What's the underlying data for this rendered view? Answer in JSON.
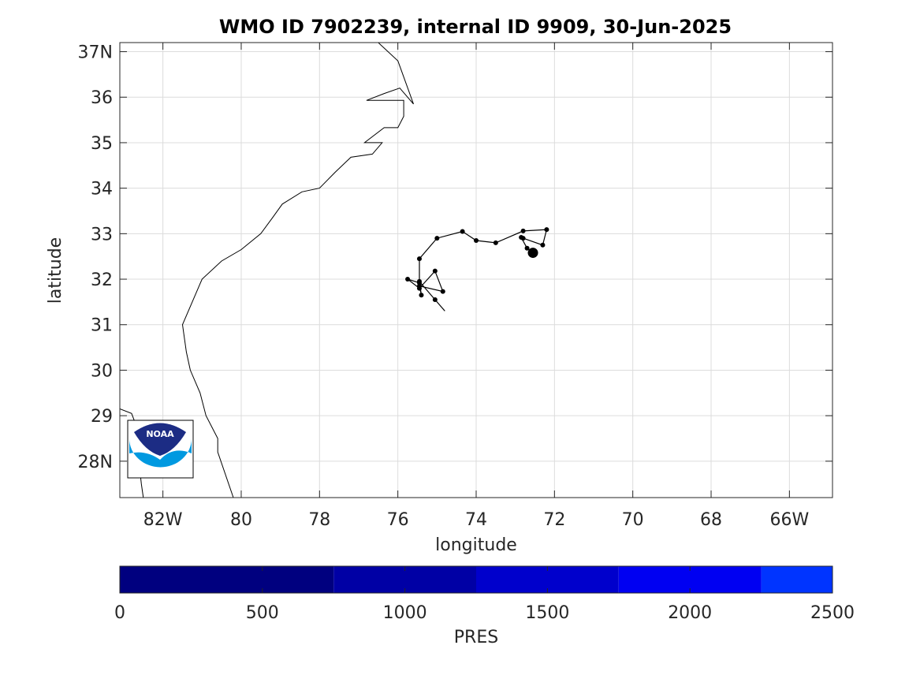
{
  "chart_data": {
    "type": "map",
    "title": "WMO ID 7902239, internal ID 9909, 30-Jun-2025",
    "xlabel": "longitude",
    "ylabel": "latitude",
    "xlim": [
      -83.1,
      -64.9
    ],
    "ylim": [
      27.2,
      37.2
    ],
    "x_ticks": [
      {
        "value": -82,
        "label": "82W"
      },
      {
        "value": -80,
        "label": "80"
      },
      {
        "value": -78,
        "label": "78"
      },
      {
        "value": -76,
        "label": "76"
      },
      {
        "value": -74,
        "label": "74"
      },
      {
        "value": -72,
        "label": "72"
      },
      {
        "value": -70,
        "label": "70"
      },
      {
        "value": -68,
        "label": "68"
      },
      {
        "value": -66,
        "label": "66W"
      }
    ],
    "y_ticks": [
      {
        "value": 28,
        "label": "28N"
      },
      {
        "value": 29,
        "label": "29"
      },
      {
        "value": 30,
        "label": "30"
      },
      {
        "value": 31,
        "label": "31"
      },
      {
        "value": 32,
        "label": "32"
      },
      {
        "value": 33,
        "label": "33"
      },
      {
        "value": 34,
        "label": "34"
      },
      {
        "value": 35,
        "label": "35"
      },
      {
        "value": 36,
        "label": "36"
      },
      {
        "value": 37,
        "label": "37N"
      }
    ],
    "grid": true,
    "coastline": [
      [
        -76.5,
        37.2
      ],
      [
        -76.0,
        36.8
      ],
      [
        -75.6,
        35.85
      ],
      [
        -75.95,
        36.2
      ],
      [
        -76.35,
        36.08
      ],
      [
        -76.8,
        35.93
      ],
      [
        -75.85,
        35.93
      ],
      [
        -75.85,
        35.58
      ],
      [
        -76.0,
        35.33
      ],
      [
        -76.35,
        35.33
      ],
      [
        -76.85,
        35.0
      ],
      [
        -76.4,
        35.0
      ],
      [
        -76.65,
        34.75
      ],
      [
        -77.2,
        34.68
      ],
      [
        -77.6,
        34.35
      ],
      [
        -78.0,
        34.0
      ],
      [
        -78.45,
        33.92
      ],
      [
        -78.95,
        33.65
      ],
      [
        -79.2,
        33.35
      ],
      [
        -79.5,
        33.0
      ],
      [
        -80.0,
        32.65
      ],
      [
        -80.5,
        32.4
      ],
      [
        -81.0,
        32.0
      ],
      [
        -81.5,
        31.0
      ],
      [
        -81.4,
        30.4
      ],
      [
        -81.3,
        30.0
      ],
      [
        -81.05,
        29.5
      ],
      [
        -80.9,
        29.0
      ],
      [
        -80.6,
        28.5
      ],
      [
        -80.6,
        28.2
      ],
      [
        -80.2,
        27.2
      ]
    ],
    "coastline_sw": [
      [
        -83.1,
        29.15
      ],
      [
        -82.8,
        29.05
      ],
      [
        -82.6,
        28.6
      ],
      [
        -82.6,
        27.9
      ],
      [
        -82.55,
        27.5
      ],
      [
        -82.5,
        27.2
      ]
    ],
    "track": [
      {
        "lon": -74.8,
        "lat": 31.3,
        "dot": false
      },
      {
        "lon": -75.05,
        "lat": 31.55,
        "dot": true
      },
      {
        "lon": -75.45,
        "lat": 31.95,
        "dot": true
      },
      {
        "lon": -75.4,
        "lat": 31.65,
        "dot": true
      },
      {
        "lon": -75.45,
        "lat": 31.85,
        "dot": true
      },
      {
        "lon": -74.85,
        "lat": 31.73,
        "dot": true
      },
      {
        "lon": -75.05,
        "lat": 32.18,
        "dot": true
      },
      {
        "lon": -75.45,
        "lat": 31.8,
        "dot": true
      },
      {
        "lon": -75.75,
        "lat": 32.0,
        "dot": true
      },
      {
        "lon": -75.45,
        "lat": 31.92,
        "dot": true
      },
      {
        "lon": -75.45,
        "lat": 32.45,
        "dot": true
      },
      {
        "lon": -75.0,
        "lat": 32.9,
        "dot": true
      },
      {
        "lon": -74.35,
        "lat": 33.05,
        "dot": true
      },
      {
        "lon": -74.0,
        "lat": 32.85,
        "dot": true
      },
      {
        "lon": -73.5,
        "lat": 32.8,
        "dot": true
      },
      {
        "lon": -72.8,
        "lat": 33.06,
        "dot": true
      },
      {
        "lon": -72.2,
        "lat": 33.09,
        "dot": true
      },
      {
        "lon": -72.3,
        "lat": 32.75,
        "dot": true
      },
      {
        "lon": -72.8,
        "lat": 32.9,
        "dot": true
      },
      {
        "lon": -72.85,
        "lat": 32.92,
        "dot": true
      },
      {
        "lon": -72.7,
        "lat": 32.68,
        "dot": true
      },
      {
        "lon": -72.55,
        "lat": 32.58,
        "dot": true,
        "latest": true
      }
    ],
    "colorbar": {
      "label": "PRES",
      "lim": [
        0,
        2500
      ],
      "ticks": [
        0,
        500,
        1000,
        1500,
        2000,
        2500
      ],
      "segments": [
        {
          "from": 0,
          "to": 750,
          "color": "#00007F"
        },
        {
          "from": 750,
          "to": 1250,
          "color": "#0000A5"
        },
        {
          "from": 1250,
          "to": 1750,
          "color": "#0000CC"
        },
        {
          "from": 1750,
          "to": 2250,
          "color": "#0000F2"
        },
        {
          "from": 2250,
          "to": 2500,
          "color": "#0034FF"
        }
      ]
    },
    "logo": {
      "text": "NOAA",
      "colors": {
        "navy": "#1C2C84",
        "sky": "#0099E0"
      }
    }
  }
}
